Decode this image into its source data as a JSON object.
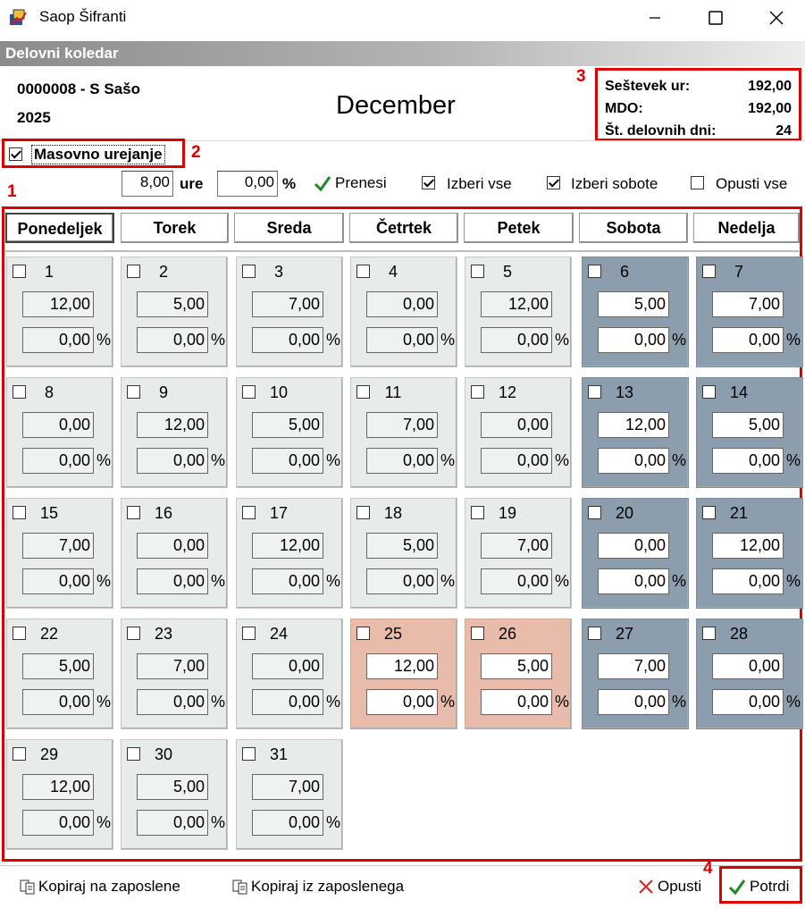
{
  "window": {
    "title": "Saop Šifranti"
  },
  "header": {
    "band_title": "Delovni koledar",
    "employee": "0000008 - S Sašo",
    "year": "2025",
    "month": "December"
  },
  "summary": {
    "hours_label": "Seštevek ur:",
    "hours_value": "192,00",
    "mdo_label": "MDO:",
    "mdo_value": "192,00",
    "days_label": "Št. delovnih dni:",
    "days_value": "24"
  },
  "annotations": {
    "n1": "1",
    "n2": "2",
    "n3": "3",
    "n4": "4"
  },
  "mass_edit": {
    "label": "Masovno urejanje",
    "checked": true,
    "hours_value": "8,00",
    "hours_unit": "ure",
    "percent_value": "0,00",
    "percent_unit": "%",
    "transfer_label": "Prenesi",
    "select_all_label": "Izberi vse",
    "select_all_checked": true,
    "select_saturdays_label": "Izberi sobote",
    "select_saturdays_checked": true,
    "deselect_all_label": "Opusti vse",
    "deselect_all_checked": false
  },
  "weekdays": [
    "Ponedeljek",
    "Torek",
    "Sreda",
    "Četrtek",
    "Petek",
    "Sobota",
    "Nedelja"
  ],
  "days": [
    {
      "day": "1",
      "hours": "12,00",
      "pct": "0,00",
      "type": "work"
    },
    {
      "day": "2",
      "hours": "5,00",
      "pct": "0,00",
      "type": "work"
    },
    {
      "day": "3",
      "hours": "7,00",
      "pct": "0,00",
      "type": "work"
    },
    {
      "day": "4",
      "hours": "0,00",
      "pct": "0,00",
      "type": "work"
    },
    {
      "day": "5",
      "hours": "12,00",
      "pct": "0,00",
      "type": "work"
    },
    {
      "day": "6",
      "hours": "5,00",
      "pct": "0,00",
      "type": "weekend"
    },
    {
      "day": "7",
      "hours": "7,00",
      "pct": "0,00",
      "type": "weekend"
    },
    {
      "day": "8",
      "hours": "0,00",
      "pct": "0,00",
      "type": "work"
    },
    {
      "day": "9",
      "hours": "12,00",
      "pct": "0,00",
      "type": "work"
    },
    {
      "day": "10",
      "hours": "5,00",
      "pct": "0,00",
      "type": "work"
    },
    {
      "day": "11",
      "hours": "7,00",
      "pct": "0,00",
      "type": "work"
    },
    {
      "day": "12",
      "hours": "0,00",
      "pct": "0,00",
      "type": "work"
    },
    {
      "day": "13",
      "hours": "12,00",
      "pct": "0,00",
      "type": "weekend"
    },
    {
      "day": "14",
      "hours": "5,00",
      "pct": "0,00",
      "type": "weekend"
    },
    {
      "day": "15",
      "hours": "7,00",
      "pct": "0,00",
      "type": "work"
    },
    {
      "day": "16",
      "hours": "0,00",
      "pct": "0,00",
      "type": "work"
    },
    {
      "day": "17",
      "hours": "12,00",
      "pct": "0,00",
      "type": "work"
    },
    {
      "day": "18",
      "hours": "5,00",
      "pct": "0,00",
      "type": "work"
    },
    {
      "day": "19",
      "hours": "7,00",
      "pct": "0,00",
      "type": "work"
    },
    {
      "day": "20",
      "hours": "0,00",
      "pct": "0,00",
      "type": "weekend"
    },
    {
      "day": "21",
      "hours": "12,00",
      "pct": "0,00",
      "type": "weekend"
    },
    {
      "day": "22",
      "hours": "5,00",
      "pct": "0,00",
      "type": "work"
    },
    {
      "day": "23",
      "hours": "7,00",
      "pct": "0,00",
      "type": "work"
    },
    {
      "day": "24",
      "hours": "0,00",
      "pct": "0,00",
      "type": "work"
    },
    {
      "day": "25",
      "hours": "12,00",
      "pct": "0,00",
      "type": "holiday"
    },
    {
      "day": "26",
      "hours": "5,00",
      "pct": "0,00",
      "type": "holiday"
    },
    {
      "day": "27",
      "hours": "7,00",
      "pct": "0,00",
      "type": "weekend"
    },
    {
      "day": "28",
      "hours": "0,00",
      "pct": "0,00",
      "type": "weekend"
    },
    {
      "day": "29",
      "hours": "12,00",
      "pct": "0,00",
      "type": "work"
    },
    {
      "day": "30",
      "hours": "5,00",
      "pct": "0,00",
      "type": "work"
    },
    {
      "day": "31",
      "hours": "7,00",
      "pct": "0,00",
      "type": "work"
    }
  ],
  "footer": {
    "copy_to_label": "Kopiraj na zaposlene",
    "copy_from_label": "Kopiraj iz zaposlenega",
    "cancel_label": "Opusti",
    "confirm_label": "Potrdi"
  },
  "colors": {
    "annotation": "#e00000",
    "weekend": "#8c9eae",
    "holiday": "#e8bbaa",
    "workday": "#e7ecea",
    "check": "#1d8a2a"
  }
}
